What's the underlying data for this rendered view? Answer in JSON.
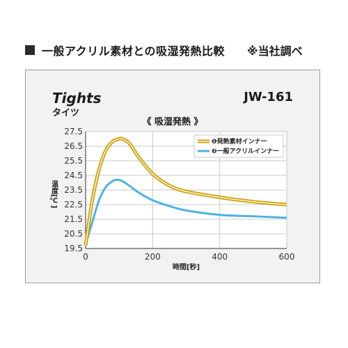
{
  "heading": {
    "title": "一般アクリル素材との吸湿発熱比較",
    "note": "※当社調べ"
  },
  "product": {
    "name_en": "Tights",
    "name_ja": "タイツ",
    "code": "JW-161"
  },
  "colors": {
    "series1": "#f0c020",
    "series1_outline": "#c9a010",
    "series2": "#4db3e0",
    "grid": "#c8c8c8",
    "axis": "#333333"
  },
  "chart_data": {
    "type": "line",
    "title": "《 吸湿発熱 》",
    "xlabel": "時間[秒]",
    "ylabel": "温度[℃]",
    "xlim": [
      0,
      600
    ],
    "ylim": [
      19.5,
      27.5
    ],
    "xticks": [
      0,
      200,
      400,
      600
    ],
    "yticks": [
      19.5,
      20.5,
      21.5,
      22.5,
      23.5,
      24.5,
      25.5,
      26.5,
      27.5
    ],
    "grid": true,
    "legend_position": "top-right",
    "series": [
      {
        "name": "❶発熱素材インナー",
        "x": [
          0,
          20,
          40,
          60,
          80,
          100,
          110,
          130,
          160,
          200,
          250,
          300,
          400,
          500,
          600
        ],
        "y": [
          19.7,
          22.8,
          24.9,
          26.2,
          26.8,
          27.0,
          27.0,
          26.7,
          25.7,
          24.6,
          23.8,
          23.4,
          23.0,
          22.7,
          22.5
        ]
      },
      {
        "name": "❷一般アクリルインナー",
        "x": [
          0,
          20,
          40,
          60,
          80,
          95,
          110,
          130,
          160,
          200,
          250,
          300,
          400,
          500,
          600
        ],
        "y": [
          19.8,
          21.3,
          22.8,
          23.7,
          24.1,
          24.2,
          24.1,
          23.8,
          23.3,
          22.8,
          22.4,
          22.1,
          21.8,
          21.7,
          21.6
        ]
      }
    ]
  }
}
